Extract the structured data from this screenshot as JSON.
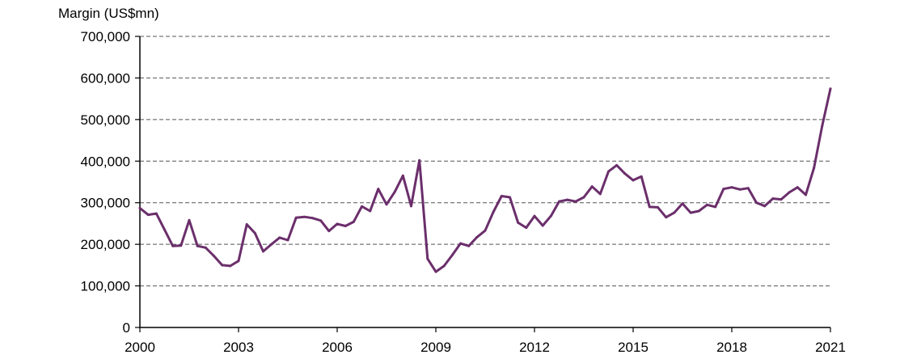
{
  "chart_data": {
    "type": "line",
    "title": "",
    "ylabel": "Margin (US$mn)",
    "xlabel": "",
    "ylim": [
      0,
      700000
    ],
    "xlim": [
      2000,
      2021
    ],
    "y_ticks": [
      0,
      100000,
      200000,
      300000,
      400000,
      500000,
      600000,
      700000
    ],
    "y_tick_labels": [
      "0",
      "100,000",
      "200,000",
      "300,000",
      "400,000",
      "500,000",
      "600,000",
      "700,000"
    ],
    "x_ticks": [
      2000,
      2003,
      2006,
      2009,
      2012,
      2015,
      2018,
      2021
    ],
    "x_tick_labels": [
      "2000",
      "2003",
      "2006",
      "2009",
      "2012",
      "2015",
      "2018",
      "2021"
    ],
    "grid": "horizontal dashed",
    "line_color": "#6b2f6b",
    "series": [
      {
        "name": "",
        "x": [
          2000.0,
          2000.25,
          2000.5,
          2000.75,
          2001.0,
          2001.25,
          2001.5,
          2001.75,
          2002.0,
          2002.25,
          2002.5,
          2002.75,
          2003.0,
          2003.25,
          2003.5,
          2003.75,
          2004.0,
          2004.25,
          2004.5,
          2004.75,
          2005.0,
          2005.25,
          2005.5,
          2005.75,
          2006.0,
          2006.25,
          2006.5,
          2006.75,
          2007.0,
          2007.25,
          2007.5,
          2007.75,
          2008.0,
          2008.25,
          2008.5,
          2008.75,
          2009.0,
          2009.25,
          2009.5,
          2009.75,
          2010.0,
          2010.25,
          2010.5,
          2010.75,
          2011.0,
          2011.25,
          2011.5,
          2011.75,
          2012.0,
          2012.25,
          2012.5,
          2012.75,
          2013.0,
          2013.25,
          2013.5,
          2013.75,
          2014.0,
          2014.25,
          2014.5,
          2014.75,
          2015.0,
          2015.25,
          2015.5,
          2015.75,
          2016.0,
          2016.25,
          2016.5,
          2016.75,
          2017.0,
          2017.25,
          2017.5,
          2017.75,
          2018.0,
          2018.25,
          2018.5,
          2018.75,
          2019.0,
          2019.25,
          2019.5,
          2019.75,
          2020.0,
          2020.25,
          2020.5,
          2020.75,
          2021.0
        ],
        "y": [
          287000,
          271000,
          274000,
          235000,
          196000,
          197000,
          258000,
          196000,
          192000,
          172000,
          150000,
          148000,
          160000,
          248000,
          227000,
          183000,
          200000,
          216000,
          210000,
          264000,
          266000,
          263000,
          257000,
          232000,
          249000,
          244000,
          254000,
          291000,
          280000,
          333000,
          296000,
          326000,
          365000,
          292000,
          402000,
          165000,
          134000,
          148000,
          174000,
          202000,
          196000,
          217000,
          233000,
          278000,
          316000,
          313000,
          252000,
          240000,
          268000,
          245000,
          268000,
          303000,
          307000,
          303000,
          313000,
          339000,
          321000,
          375000,
          390000,
          370000,
          354000,
          363000,
          290000,
          289000,
          265000,
          276000,
          298000,
          276000,
          280000,
          295000,
          290000,
          333000,
          337000,
          332000,
          335000,
          300000,
          292000,
          310000,
          308000,
          325000,
          337000,
          319000,
          384000,
          485000,
          574000
        ]
      }
    ]
  }
}
